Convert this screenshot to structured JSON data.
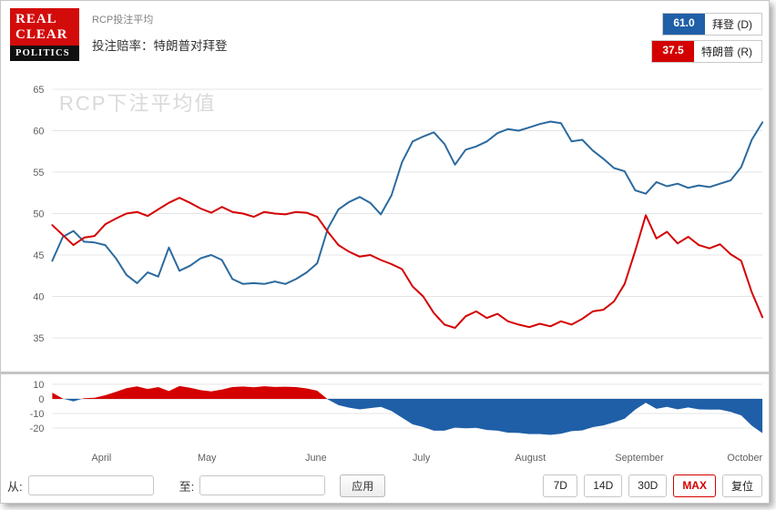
{
  "header": {
    "logo": {
      "line1": "REAL",
      "line2": "CLEAR",
      "line3": "POLITICS"
    },
    "subtitle": "RCP投注平均",
    "title": "投注赔率：特朗普对拜登"
  },
  "legend": {
    "items": [
      {
        "value": "61.0",
        "label": "拜登 (D)",
        "color": "#1f5fa8"
      },
      {
        "value": "37.5",
        "label": "特朗普 (R)",
        "color": "#d40000"
      }
    ]
  },
  "watermark": "RCP下注平均值",
  "controls": {
    "from_label": "从:",
    "from_value": "",
    "to_label": "至:",
    "to_value": "",
    "apply_label": "应用",
    "range_buttons": [
      {
        "label": "7D",
        "active": false
      },
      {
        "label": "14D",
        "active": false
      },
      {
        "label": "30D",
        "active": false
      },
      {
        "label": "MAX",
        "active": true
      },
      {
        "label": "复位",
        "active": false
      }
    ]
  },
  "chart_data": {
    "type": "line",
    "title": "投注赔率：特朗普对拜登",
    "x_range_days": 202,
    "months": [
      {
        "label": "April",
        "day": 14
      },
      {
        "label": "May",
        "day": 44
      },
      {
        "label": "June",
        "day": 75
      },
      {
        "label": "July",
        "day": 105
      },
      {
        "label": "August",
        "day": 136
      },
      {
        "label": "September",
        "day": 167
      },
      {
        "label": "October",
        "day": 197
      }
    ],
    "y_ticks": [
      65,
      60,
      55,
      50,
      45,
      40,
      35
    ],
    "ylim": [
      33,
      66
    ],
    "spread_ticks": [
      10,
      0,
      -10,
      -20
    ],
    "spread": {
      "definition": "特朗普 - 拜登",
      "positive_color": "#d40000",
      "negative_color": "#1f5fa8"
    },
    "series": [
      {
        "name": "拜登 (D)",
        "color": "#2b6a9e",
        "current": 61.0,
        "values": [
          44.3,
          47.2,
          47.9,
          46.6,
          46.5,
          46.2,
          44.6,
          42.6,
          41.6,
          42.9,
          42.4,
          45.9,
          43.1,
          43.7,
          44.6,
          45.0,
          44.4,
          42.1,
          41.5,
          41.6,
          41.5,
          41.8,
          41.5,
          42.1,
          42.9,
          44.0,
          48.2,
          50.5,
          51.4,
          52.0,
          51.3,
          49.9,
          52.2,
          56.2,
          58.7,
          59.3,
          59.8,
          58.4,
          55.9,
          57.7,
          58.1,
          58.7,
          59.7,
          60.2,
          60.0,
          60.4,
          60.8,
          61.1,
          60.9,
          58.7,
          58.9,
          57.6,
          56.6,
          55.5,
          55.1,
          52.8,
          52.4,
          53.8,
          53.3,
          53.6,
          53.1,
          53.4,
          53.2,
          53.6,
          54.0,
          55.6,
          58.9,
          61.0
        ]
      },
      {
        "name": "特朗普 (R)",
        "color": "#d40000",
        "current": 37.5,
        "values": [
          48.6,
          47.4,
          46.2,
          47.1,
          47.3,
          48.7,
          49.4,
          50.0,
          50.2,
          49.7,
          50.5,
          51.3,
          51.9,
          51.3,
          50.6,
          50.1,
          50.8,
          50.2,
          50.0,
          49.6,
          50.2,
          50.0,
          49.9,
          50.2,
          50.1,
          49.6,
          47.8,
          46.2,
          45.4,
          44.8,
          45.0,
          44.4,
          43.9,
          43.3,
          41.2,
          40.0,
          38.0,
          36.6,
          36.2,
          37.6,
          38.2,
          37.4,
          37.9,
          37.0,
          36.6,
          36.3,
          36.7,
          36.4,
          37.0,
          36.6,
          37.3,
          38.2,
          38.4,
          39.4,
          41.5,
          45.5,
          49.8,
          47.0,
          47.8,
          46.4,
          47.2,
          46.2,
          45.8,
          46.3,
          45.1,
          44.3,
          40.5,
          37.5
        ]
      }
    ]
  }
}
